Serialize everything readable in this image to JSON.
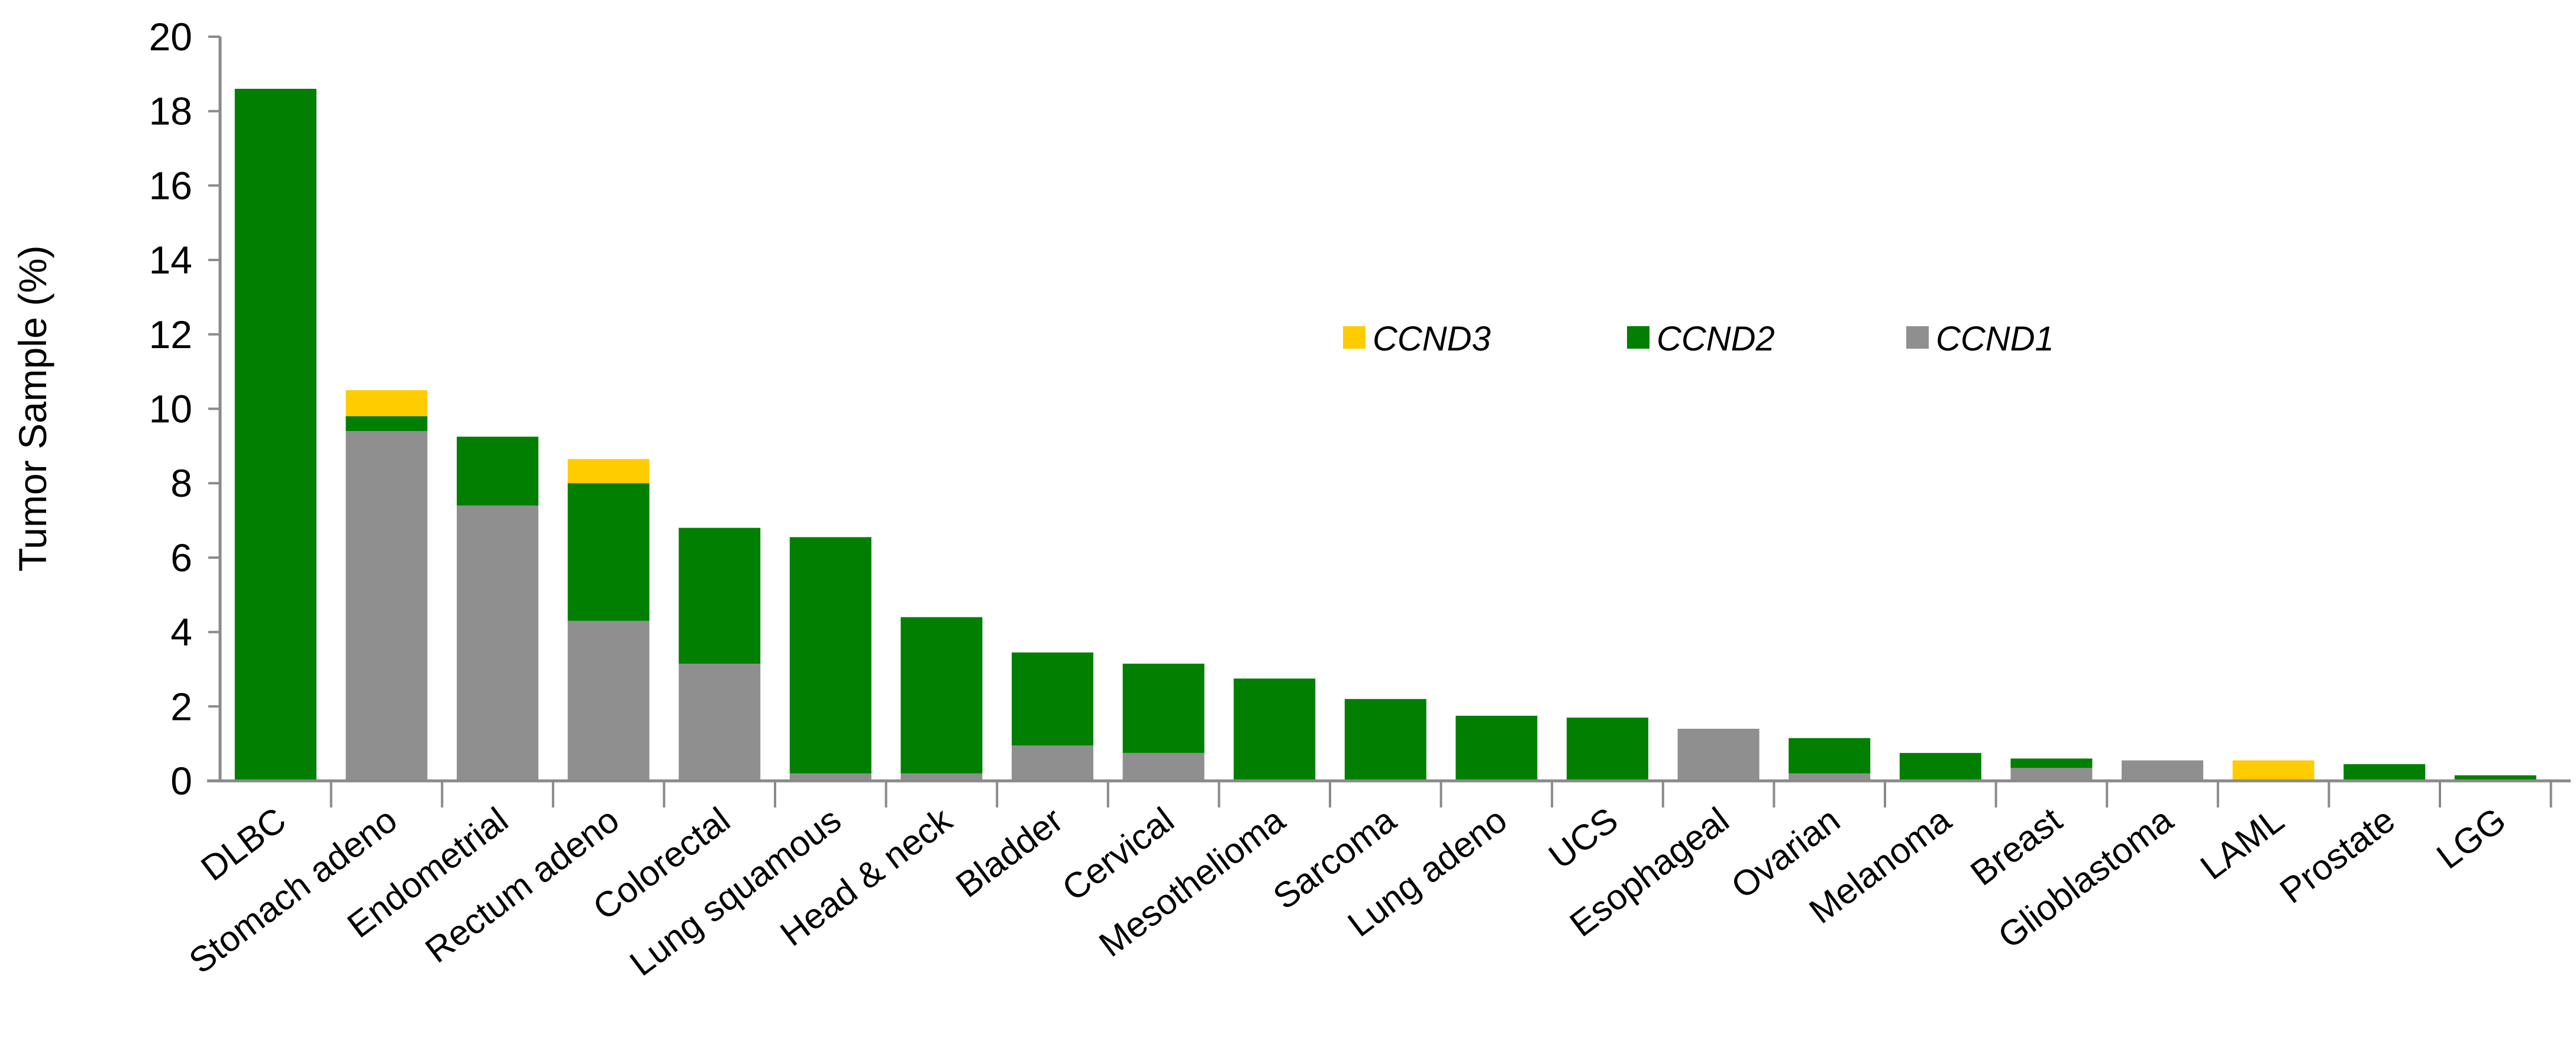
{
  "chart_data": {
    "type": "bar",
    "stacked": true,
    "title": "",
    "xlabel": "",
    "ylabel": "Tumor Sample (%)",
    "ylim": [
      0,
      20
    ],
    "yticks": [
      "0",
      "2",
      "4",
      "6",
      "8",
      "10",
      "12",
      "14",
      "16",
      "18",
      "20"
    ],
    "grid": false,
    "legend_position": "top-right",
    "categories": [
      "DLBC",
      "Stomach adeno",
      "Endometrial",
      "Rectum adeno",
      "Colorectal",
      "Lung squamous",
      "Head & neck",
      "Bladder",
      "Cervical",
      "Mesothelioma",
      "Sarcoma",
      "Lung adeno",
      "UCS",
      "Esophageal",
      "Ovarian",
      "Melanoma",
      "Breast",
      "Glioblastoma",
      "LAML",
      "Prostate",
      "LGG"
    ],
    "series": [
      {
        "name": "CCND1",
        "color": "#8f8f8f",
        "values": [
          0,
          9.4,
          7.4,
          4.3,
          3.15,
          0.2,
          0.2,
          0.95,
          0.75,
          0,
          0,
          0,
          0,
          1.4,
          0.2,
          0,
          0.35,
          0.55,
          0,
          0,
          0
        ]
      },
      {
        "name": "CCND2",
        "color": "#007f00",
        "values": [
          18.6,
          0.4,
          1.85,
          3.7,
          3.65,
          6.35,
          4.2,
          2.5,
          2.4,
          2.75,
          2.2,
          1.75,
          1.7,
          0,
          0.95,
          0.75,
          0.25,
          0,
          0,
          0.45,
          0.15
        ]
      },
      {
        "name": "CCND3",
        "color": "#ffcc00",
        "values": [
          0,
          0.7,
          0,
          0.65,
          0,
          0,
          0,
          0,
          0,
          0,
          0,
          0,
          0,
          0,
          0,
          0,
          0,
          0,
          0.55,
          0,
          0
        ]
      }
    ],
    "legend_order": [
      "CCND3",
      "CCND2",
      "CCND1"
    ]
  }
}
